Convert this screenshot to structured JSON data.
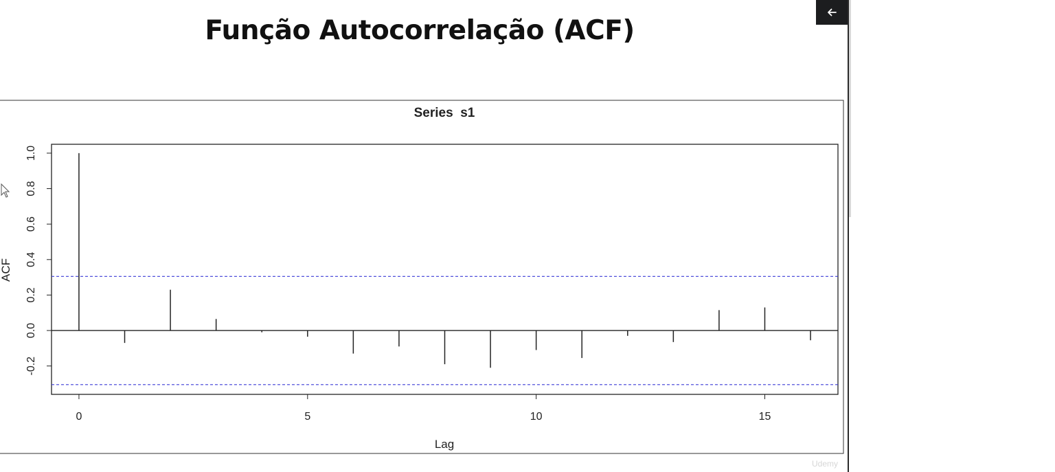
{
  "slide": {
    "title": "Função Autocorrelação (ACF)",
    "watermark": "Udemy"
  },
  "controls": {
    "back_icon": "arrow-left-icon"
  },
  "chart_data": {
    "type": "bar",
    "title": "Series  s1",
    "xlabel": "Lag",
    "ylabel": "ACF",
    "xlim": [
      -0.6,
      16.6
    ],
    "ylim": [
      -0.36,
      1.05
    ],
    "x_ticks": [
      0,
      5,
      10,
      15
    ],
    "y_ticks": [
      -0.2,
      0.0,
      0.2,
      0.4,
      0.6,
      0.8,
      1.0
    ],
    "y_tick_labels": [
      "-0.2",
      "0.0",
      "0.2",
      "0.4",
      "0.6",
      "0.8",
      "1.0"
    ],
    "grid": false,
    "lags": [
      0,
      1,
      2,
      3,
      4,
      5,
      6,
      7,
      8,
      9,
      10,
      11,
      12,
      13,
      14,
      15,
      16
    ],
    "values": [
      1.0,
      -0.07,
      0.23,
      0.065,
      -0.01,
      -0.035,
      -0.13,
      -0.09,
      -0.19,
      -0.21,
      -0.11,
      -0.155,
      -0.03,
      -0.065,
      0.115,
      0.13,
      -0.055
    ],
    "confidence_bounds": [
      0.305,
      -0.305
    ],
    "colors": {
      "bars": "#222222",
      "confidence": "#3b3bd6",
      "zero_line": "#222222"
    }
  }
}
